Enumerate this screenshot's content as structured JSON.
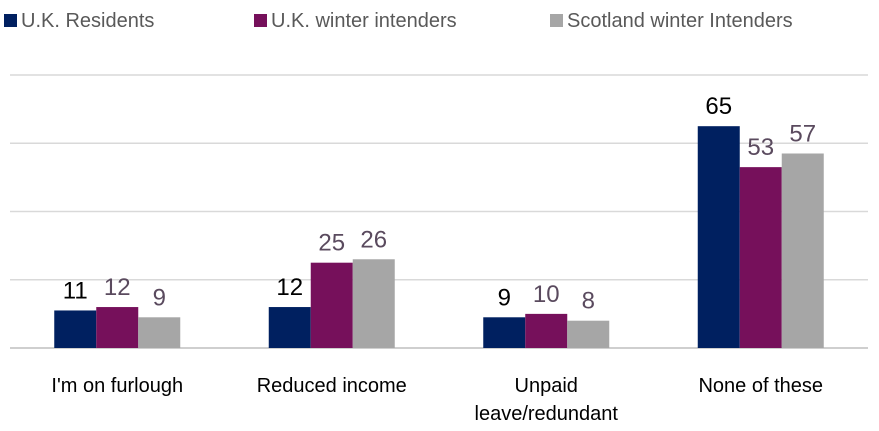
{
  "chart_data": {
    "type": "bar",
    "categories": [
      [
        "I'm on furlough"
      ],
      [
        "Reduced income"
      ],
      [
        "Unpaid",
        "leave/redundant"
      ],
      [
        "None of these"
      ]
    ],
    "series": [
      {
        "name": "U.K. Residents",
        "values": [
          11,
          12,
          9,
          65
        ],
        "color": "#002060",
        "label_color": "#000000"
      },
      {
        "name": "U.K. winter intenders",
        "values": [
          12,
          25,
          10,
          53
        ],
        "color": "#76105B",
        "label_color": "#5A4A5E"
      },
      {
        "name": "Scotland winter Intenders",
        "values": [
          9,
          26,
          8,
          57
        ],
        "color": "#A6A6A6",
        "label_color": "#5A4A5E"
      }
    ],
    "ylim": [
      0,
      80
    ],
    "grid": true,
    "legend_position": "top"
  }
}
